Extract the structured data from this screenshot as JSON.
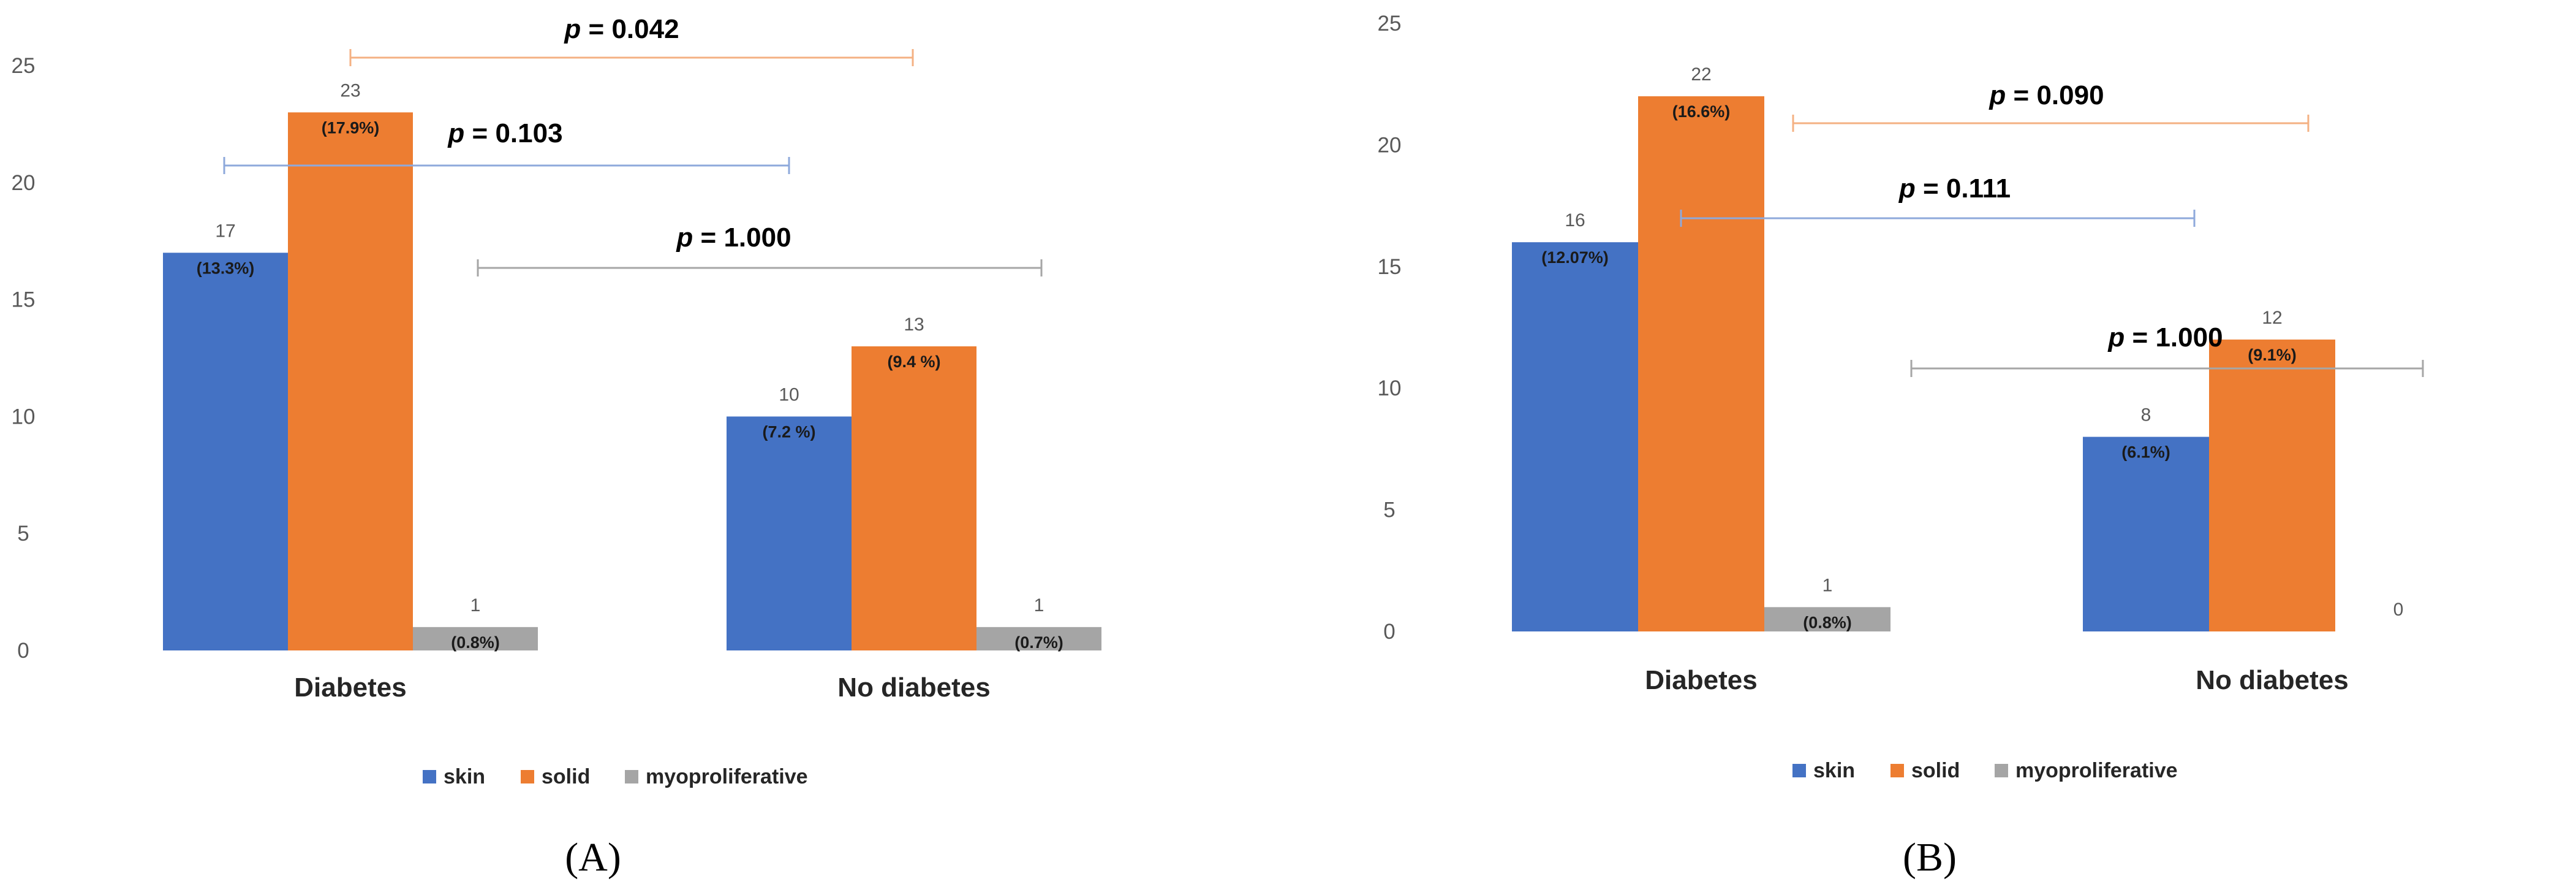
{
  "colors": {
    "skin": "#4472C4",
    "solid": "#ED7D31",
    "myoproliferative": "#A5A5A5",
    "bracket_solid": "#F4B183",
    "bracket_skin": "#8EA9DB",
    "bracket_myo": "#A6A6A6"
  },
  "legend": [
    "skin",
    "solid",
    "myoproliferative"
  ],
  "chart_data": [
    {
      "type": "bar",
      "panel": "(A)",
      "categories": [
        "Diabetes",
        "No diabetes"
      ],
      "series": [
        {
          "name": "skin",
          "values": [
            17,
            10
          ],
          "labels": [
            "(13.3%)",
            "(7.2 %)"
          ]
        },
        {
          "name": "solid",
          "values": [
            23,
            13
          ],
          "labels": [
            "(17.9%)",
            "(9.4 %)"
          ]
        },
        {
          "name": "myoproliferative",
          "values": [
            1,
            1
          ],
          "labels": [
            "(0.8%)",
            "(0.7%)"
          ]
        }
      ],
      "ylim": [
        0,
        25
      ],
      "yticks": [
        0,
        5,
        10,
        15,
        20,
        25
      ],
      "annotations": [
        {
          "series": "solid",
          "p_label": "p",
          "p_value": "= 0.042"
        },
        {
          "series": "skin",
          "p_label": "p",
          "p_value": "= 0.103"
        },
        {
          "series": "myoproliferative",
          "p_label": "p",
          "p_value": "= 1.000"
        }
      ]
    },
    {
      "type": "bar",
      "panel": "(B)",
      "categories": [
        "Diabetes",
        "No diabetes"
      ],
      "series": [
        {
          "name": "skin",
          "values": [
            16,
            8
          ],
          "labels": [
            "(12.07%)",
            "(6.1%)"
          ]
        },
        {
          "name": "solid",
          "values": [
            22,
            12
          ],
          "labels": [
            "(16.6%)",
            "(9.1%)"
          ]
        },
        {
          "name": "myoproliferative",
          "values": [
            1,
            0
          ],
          "labels": [
            "(0.8%)",
            ""
          ]
        }
      ],
      "ylim": [
        0,
        25
      ],
      "yticks": [
        0,
        5,
        10,
        15,
        20,
        25
      ],
      "annotations": [
        {
          "series": "solid",
          "p_label": "p",
          "p_value": "= 0.090"
        },
        {
          "series": "skin",
          "p_label": "p",
          "p_value": "= 0.111"
        },
        {
          "series": "myoproliferative",
          "p_label": "p",
          "p_value": "= 1.000"
        }
      ]
    }
  ]
}
